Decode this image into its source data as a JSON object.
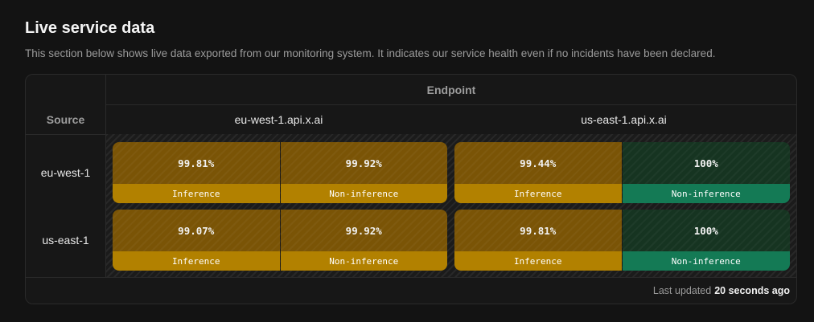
{
  "section": {
    "title": "Live service data",
    "description": "This section below shows live data exported from our monitoring system. It indicates our service health even if no incidents have been declared."
  },
  "table": {
    "endpoint_header": "Endpoint",
    "source_header": "Source",
    "endpoints": [
      "eu-west-1.api.x.ai",
      "us-east-1.api.x.ai"
    ],
    "sources": [
      "eu-west-1",
      "us-east-1"
    ],
    "rows": [
      {
        "source": "eu-west-1",
        "tiles": [
          {
            "cells": [
              {
                "value": "99.81%",
                "label": "Inference",
                "status": "warn"
              },
              {
                "value": "99.92%",
                "label": "Non-inference",
                "status": "warn"
              }
            ]
          },
          {
            "cells": [
              {
                "value": "99.44%",
                "label": "Inference",
                "status": "warn"
              },
              {
                "value": "100%",
                "label": "Non-inference",
                "status": "ok"
              }
            ]
          }
        ]
      },
      {
        "source": "us-east-1",
        "tiles": [
          {
            "cells": [
              {
                "value": "99.07%",
                "label": "Inference",
                "status": "warn"
              },
              {
                "value": "99.92%",
                "label": "Non-inference",
                "status": "warn"
              }
            ]
          },
          {
            "cells": [
              {
                "value": "99.81%",
                "label": "Inference",
                "status": "warn"
              },
              {
                "value": "100%",
                "label": "Non-inference",
                "status": "ok"
              }
            ]
          }
        ]
      }
    ]
  },
  "footer": {
    "prefix": "Last updated",
    "value": "20 seconds ago"
  },
  "colors": {
    "warn": "#b28100",
    "ok": "#147a55"
  }
}
